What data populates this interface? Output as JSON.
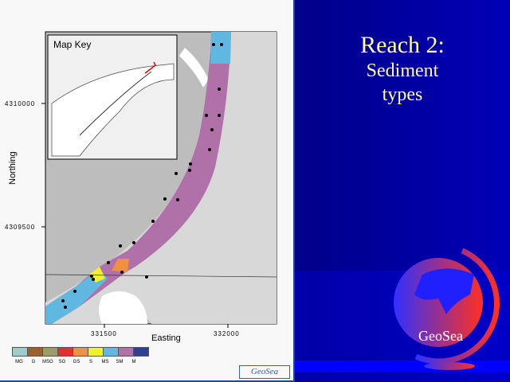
{
  "slide": {
    "title_line1": "Reach 2:",
    "title_line2": "Sediment",
    "title_line3": "types"
  },
  "map": {
    "inset_title": "Map Key",
    "ylabel": "Northing",
    "xlabel": "Easting",
    "yticks": [
      "4310000",
      "4309500"
    ],
    "xticks": [
      "331500",
      "332000"
    ]
  },
  "legend": {
    "items": [
      {
        "label": "MG",
        "color": "#9ccccc"
      },
      {
        "label": "G",
        "color": "#9c6030"
      },
      {
        "label": "MSG",
        "color": "#9c9c6a"
      },
      {
        "label": "SG",
        "color": "#e03030"
      },
      {
        "label": "GS",
        "color": "#f09040"
      },
      {
        "label": "S",
        "color": "#f0f030"
      },
      {
        "label": "MS",
        "color": "#60b8e0"
      },
      {
        "label": "SM",
        "color": "#b070a8"
      },
      {
        "label": "M",
        "color": "#304090"
      }
    ]
  },
  "logo_small": "GeoSea",
  "logo": "GeoSea"
}
